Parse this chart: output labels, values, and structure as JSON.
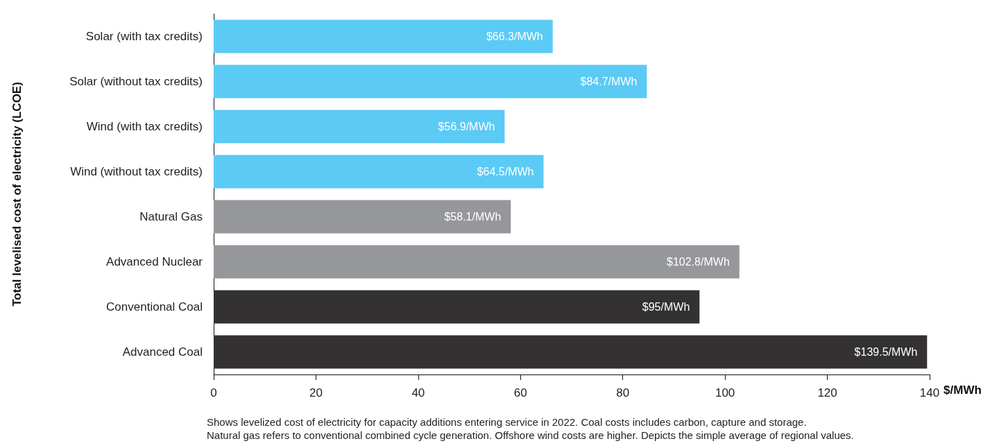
{
  "chart_data": {
    "type": "bar",
    "orientation": "horizontal",
    "categories": [
      "Solar (with tax credits)",
      "Solar (without tax credits)",
      "Wind (with tax credits)",
      "Wind (without tax credits)",
      "Natural Gas",
      "Advanced Nuclear",
      "Conventional Coal",
      "Advanced Coal"
    ],
    "values": [
      66.3,
      84.7,
      56.9,
      64.5,
      58.1,
      102.8,
      95,
      139.5
    ],
    "value_labels": [
      "$66.3/MWh",
      "$84.7/MWh",
      "$56.9/MWh",
      "$64.5/MWh",
      "$58.1/MWh",
      "$102.8/MWh",
      "$95/MWh",
      "$139.5/MWh"
    ],
    "colors": [
      "#5bcaf5",
      "#5bcaf5",
      "#5bcaf5",
      "#5bcaf5",
      "#96979b",
      "#96979b",
      "#333132",
      "#333132"
    ],
    "xlabel": "$/MWh",
    "ylabel": "Total levelised cost of electricity (LCOE)",
    "xlim": [
      0,
      140
    ],
    "xticks": [
      0,
      20,
      40,
      60,
      80,
      100,
      120,
      140
    ],
    "grid": false,
    "annotations": [
      "Shows levelized cost of electricity for capacity additions entering service in 2022. Coal costs includes carbon, capture and storage.",
      "Natural gas refers to conventional combined cycle generation. Offshore wind costs are higher. Depicts the simple average of regional values."
    ]
  }
}
